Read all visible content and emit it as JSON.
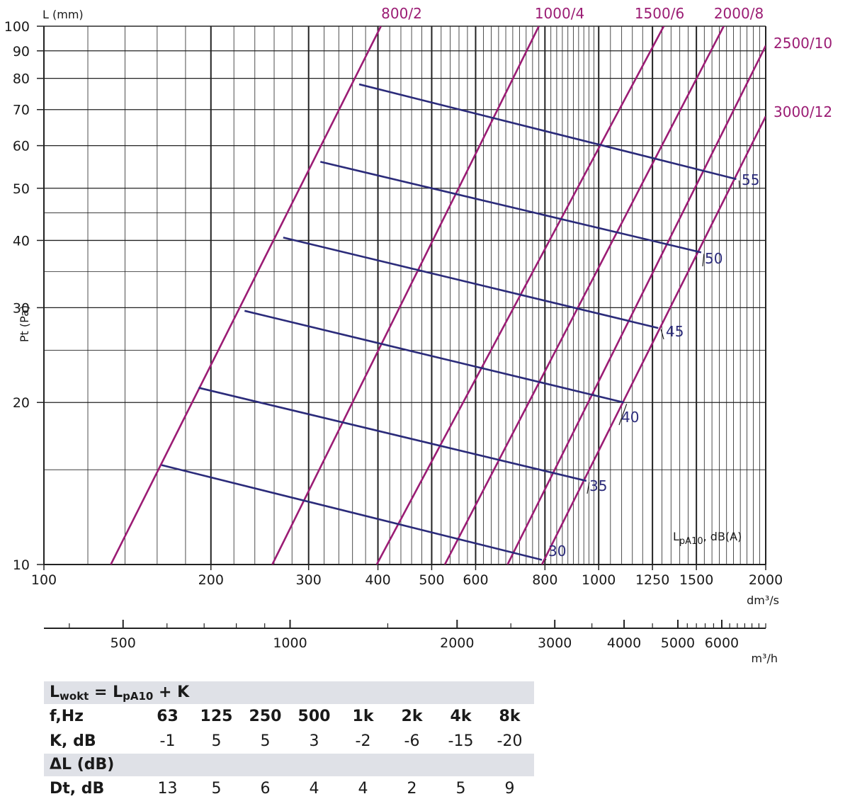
{
  "chart_data": {
    "type": "line",
    "x_axis": {
      "label": "dm³/s",
      "scale": "log",
      "range": [
        100,
        2000
      ],
      "tick_labels": [
        "100",
        "200",
        "300",
        "400",
        "500",
        "600",
        "800",
        "1000",
        "1250",
        "1500",
        "2000"
      ]
    },
    "x2_axis": {
      "label": "m³/h",
      "scale": "log",
      "tick_labels": [
        "500",
        "1000",
        "2000",
        "3000",
        "4000",
        "5000",
        "6000"
      ]
    },
    "y_axis": {
      "label": "Pt (Pa)",
      "scale": "log",
      "range": [
        10,
        100
      ],
      "tick_labels": [
        "10",
        "20",
        "30",
        "40",
        "50",
        "60",
        "70",
        "80",
        "90",
        "100"
      ]
    },
    "length_axis_label": "L (mm)",
    "grid": true,
    "series_length_lines": [
      {
        "name": "800/2",
        "points": [
          [
            132,
            10
          ],
          [
            405,
            100
          ]
        ]
      },
      {
        "name": "1000/4",
        "points": [
          [
            258,
            10
          ],
          [
            780,
            100
          ]
        ]
      },
      {
        "name": "1500/6",
        "points": [
          [
            398,
            10
          ],
          [
            1310,
            100
          ]
        ]
      },
      {
        "name": "2000/8",
        "points": [
          [
            528,
            10
          ],
          [
            1680,
            100
          ]
        ]
      },
      {
        "name": "2500/10",
        "points": [
          [
            685,
            10
          ],
          [
            2000,
            92
          ]
        ]
      },
      {
        "name": "3000/12",
        "points": [
          [
            790,
            10
          ],
          [
            2000,
            68
          ]
        ]
      }
    ],
    "series_noise_lines": [
      {
        "name": "30",
        "points": [
          [
            163,
            15.3
          ],
          [
            790,
            10.2
          ]
        ]
      },
      {
        "name": "35",
        "points": [
          [
            190,
            21.3
          ],
          [
            950,
            14.3
          ]
        ]
      },
      {
        "name": "40",
        "points": [
          [
            230,
            29.6
          ],
          [
            1110,
            20
          ]
        ]
      },
      {
        "name": "45",
        "points": [
          [
            270,
            40.5
          ],
          [
            1280,
            27.5
          ]
        ]
      },
      {
        "name": "50",
        "points": [
          [
            315,
            56
          ],
          [
            1530,
            38
          ]
        ]
      },
      {
        "name": "55",
        "points": [
          [
            370,
            78
          ],
          [
            1770,
            52
          ]
        ]
      }
    ],
    "noise_axis_label_main": "L",
    "noise_axis_label_sub": "pA10",
    "noise_axis_label_rest": ", dB(A)"
  },
  "tables": {
    "lwokt_main": "L",
    "lwokt_sub1": "wokt",
    "lwokt_mid": " = L",
    "lwokt_sub2": "pA10",
    "lwokt_end": " + K",
    "freq_label": "f,Hz",
    "freqs": [
      "63",
      "125",
      "250",
      "500",
      "1k",
      "2k",
      "4k",
      "8k"
    ],
    "k_label": "K, dB",
    "k_values": [
      "-1",
      "5",
      "5",
      "3",
      "-2",
      "-6",
      "-15",
      "-20"
    ],
    "delta_title": "ΔL (dB)",
    "dt_label": "Dt, dB",
    "dt_values": [
      "13",
      "5",
      "6",
      "4",
      "4",
      "2",
      "5",
      "9"
    ]
  },
  "colors": {
    "length_lines": "#9b1c74",
    "noise_lines": "#2b2b7a",
    "grid": "#222222",
    "band": "#dfe1e7"
  }
}
